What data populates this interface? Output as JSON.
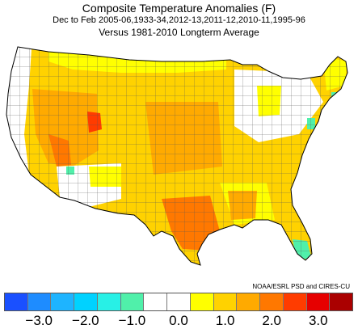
{
  "title": "Composite Temperature Anomalies (F)",
  "subtitle": "Dec to Feb  2005-06,1933-34,2012-13,2011-12,2010-11,1995-96",
  "subtitle2": "Versus 1981-2010 Longterm Average",
  "credit": "NOAA/ESRL PSD and CIRES-CU",
  "legend": {
    "colors": [
      "#1a50ff",
      "#1e8cff",
      "#1eb4ff",
      "#00d2ff",
      "#28f0e6",
      "#50f0aa",
      "#ffffff",
      "#ffffff",
      "#ffff00",
      "#ffd200",
      "#ffaa00",
      "#ff7800",
      "#ff3c00",
      "#e60000",
      "#aa0000"
    ],
    "ticks": [
      "−3.0",
      "−2.0",
      "−1.0",
      "0.0",
      "1.0",
      "2.0",
      "3.0"
    ]
  }
}
